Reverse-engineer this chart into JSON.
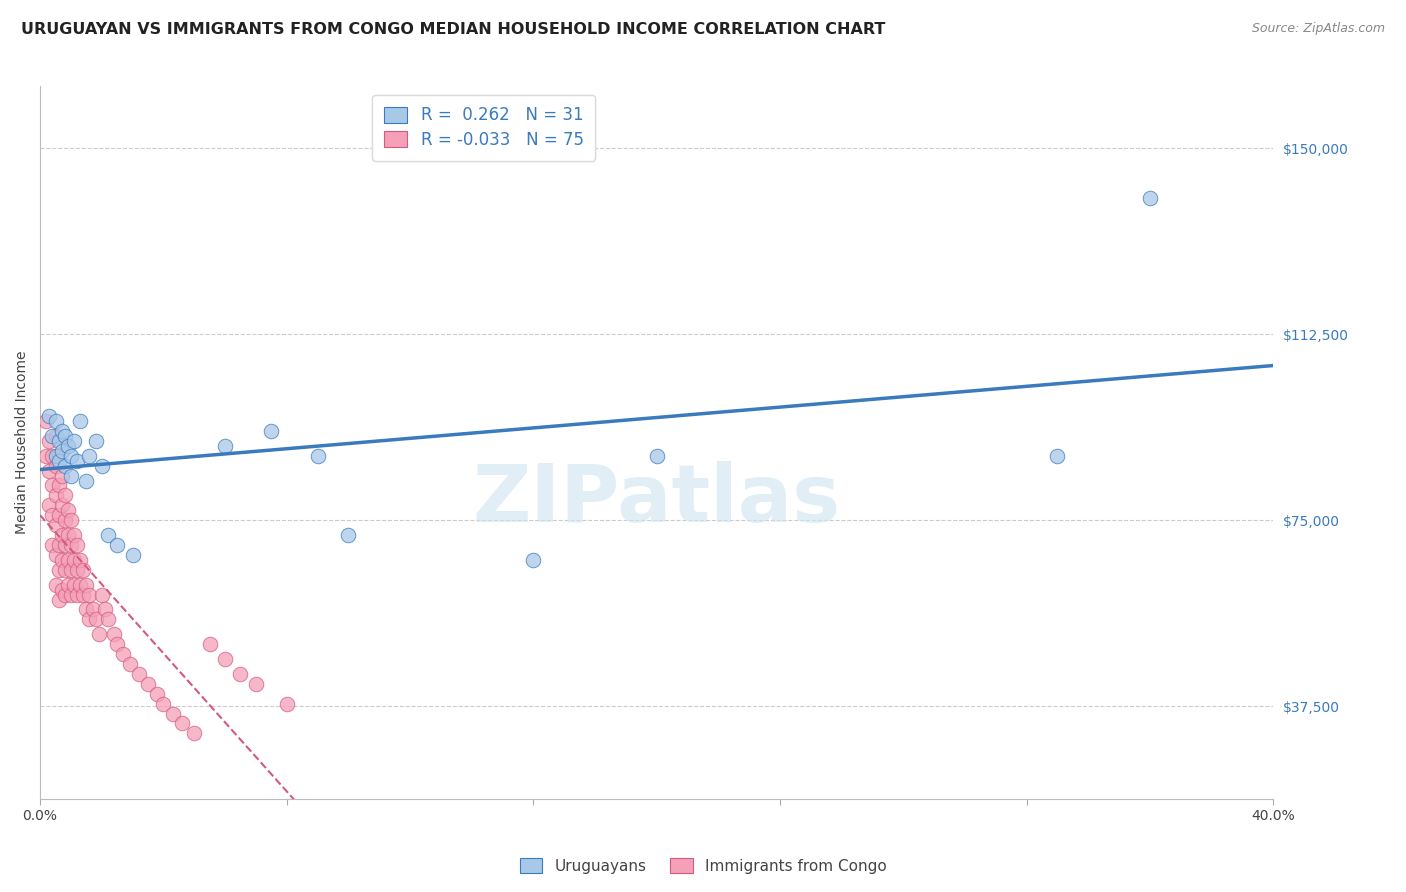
{
  "title": "URUGUAYAN VS IMMIGRANTS FROM CONGO MEDIAN HOUSEHOLD INCOME CORRELATION CHART",
  "source": "Source: ZipAtlas.com",
  "ylabel": "Median Household Income",
  "xlim": [
    0.0,
    0.4
  ],
  "ylim": [
    18750,
    162500
  ],
  "yticks": [
    37500,
    75000,
    112500,
    150000
  ],
  "ytick_labels": [
    "$37,500",
    "$75,000",
    "$112,500",
    "$150,000"
  ],
  "xticks": [
    0.0,
    0.08,
    0.16,
    0.24,
    0.32,
    0.4
  ],
  "xtick_labels": [
    "0.0%",
    "",
    "",
    "",
    "",
    "40.0%"
  ],
  "legend_labels": [
    "Uruguayans",
    "Immigrants from Congo"
  ],
  "R_uruguayan": 0.262,
  "N_uruguayan": 31,
  "R_congo": -0.033,
  "N_congo": 75,
  "blue_color": "#a8c8e8",
  "pink_color": "#f4a0b8",
  "blue_line_color": "#3a7abf",
  "pink_line_color": "#d45a80",
  "watermark_text": "ZIPatlas",
  "title_fontsize": 11.5,
  "axis_label_fontsize": 10,
  "tick_fontsize": 10,
  "uruguayan_x": [
    0.003,
    0.004,
    0.005,
    0.005,
    0.006,
    0.006,
    0.007,
    0.007,
    0.008,
    0.008,
    0.009,
    0.01,
    0.01,
    0.011,
    0.012,
    0.013,
    0.015,
    0.016,
    0.018,
    0.02,
    0.022,
    0.025,
    0.03,
    0.06,
    0.075,
    0.09,
    0.1,
    0.16,
    0.2,
    0.33,
    0.36
  ],
  "uruguayan_y": [
    96000,
    92000,
    95000,
    88000,
    91000,
    87000,
    93000,
    89000,
    92000,
    86000,
    90000,
    88000,
    84000,
    91000,
    87000,
    95000,
    83000,
    88000,
    91000,
    86000,
    72000,
    70000,
    68000,
    90000,
    93000,
    88000,
    72000,
    67000,
    88000,
    88000,
    140000
  ],
  "congo_x": [
    0.002,
    0.002,
    0.003,
    0.003,
    0.003,
    0.004,
    0.004,
    0.004,
    0.004,
    0.005,
    0.005,
    0.005,
    0.005,
    0.005,
    0.005,
    0.006,
    0.006,
    0.006,
    0.006,
    0.006,
    0.006,
    0.007,
    0.007,
    0.007,
    0.007,
    0.007,
    0.008,
    0.008,
    0.008,
    0.008,
    0.008,
    0.009,
    0.009,
    0.009,
    0.009,
    0.01,
    0.01,
    0.01,
    0.01,
    0.011,
    0.011,
    0.011,
    0.012,
    0.012,
    0.012,
    0.013,
    0.013,
    0.014,
    0.014,
    0.015,
    0.015,
    0.016,
    0.016,
    0.017,
    0.018,
    0.019,
    0.02,
    0.021,
    0.022,
    0.024,
    0.025,
    0.027,
    0.029,
    0.032,
    0.035,
    0.038,
    0.04,
    0.043,
    0.046,
    0.05,
    0.055,
    0.06,
    0.065,
    0.07,
    0.08
  ],
  "congo_y": [
    95000,
    88000,
    91000,
    85000,
    78000,
    88000,
    82000,
    76000,
    70000,
    92000,
    86000,
    80000,
    74000,
    68000,
    62000,
    88000,
    82000,
    76000,
    70000,
    65000,
    59000,
    84000,
    78000,
    72000,
    67000,
    61000,
    80000,
    75000,
    70000,
    65000,
    60000,
    77000,
    72000,
    67000,
    62000,
    75000,
    70000,
    65000,
    60000,
    72000,
    67000,
    62000,
    70000,
    65000,
    60000,
    67000,
    62000,
    65000,
    60000,
    62000,
    57000,
    60000,
    55000,
    57000,
    55000,
    52000,
    60000,
    57000,
    55000,
    52000,
    50000,
    48000,
    46000,
    44000,
    42000,
    40000,
    38000,
    36000,
    34000,
    32000,
    50000,
    47000,
    44000,
    42000,
    38000
  ]
}
